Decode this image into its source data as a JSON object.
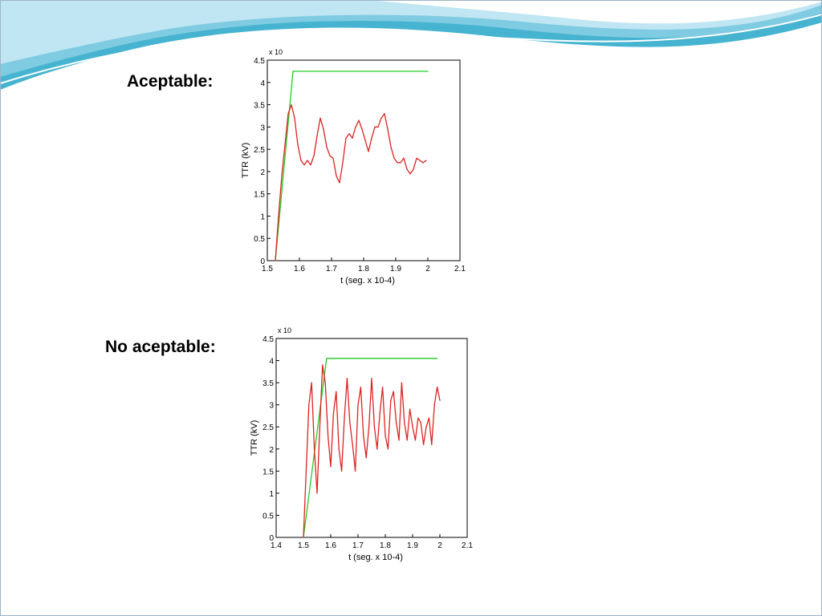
{
  "slide": {
    "labels": [
      "Aceptable:",
      "No aceptable:"
    ]
  },
  "colors": {
    "envelope": "#22cc22",
    "trv": "#dd2222",
    "wave_dark": "#46b4d0",
    "wave_light": "#a8dcec"
  },
  "chart_data": [
    {
      "type": "line",
      "title": "",
      "xlabel": "t (seg. x 10-4)",
      "ylabel": "TTR (kV)",
      "y_multiplier": "x 10",
      "xlim": [
        1.5,
        2.1
      ],
      "ylim": [
        0,
        4.5
      ],
      "xticks": [
        "1.5",
        "1.6",
        "1.7",
        "1.8",
        "1.9",
        "2",
        "2.1"
      ],
      "yticks": [
        "0",
        "0.5",
        "1",
        "1.5",
        "2",
        "2.5",
        "3",
        "3.5",
        "4",
        "4.5"
      ],
      "grid": false,
      "series": [
        {
          "color": "#22cc22",
          "x": [
            1.525,
            1.58,
            2.0
          ],
          "y": [
            0.0,
            4.25,
            4.25
          ]
        },
        {
          "color": "#dd2222",
          "x": [
            1.525,
            1.535,
            1.545,
            1.555,
            1.565,
            1.575,
            1.585,
            1.595,
            1.605,
            1.615,
            1.625,
            1.635,
            1.645,
            1.655,
            1.665,
            1.675,
            1.685,
            1.695,
            1.705,
            1.715,
            1.725,
            1.735,
            1.745,
            1.755,
            1.765,
            1.775,
            1.785,
            1.795,
            1.805,
            1.815,
            1.825,
            1.835,
            1.845,
            1.855,
            1.865,
            1.875,
            1.885,
            1.895,
            1.905,
            1.915,
            1.925,
            1.935,
            1.945,
            1.955,
            1.965,
            1.975,
            1.985,
            1.995
          ],
          "y": [
            0.0,
            1.0,
            1.9,
            2.6,
            3.3,
            3.5,
            3.2,
            2.6,
            2.25,
            2.15,
            2.25,
            2.15,
            2.35,
            2.8,
            3.2,
            2.95,
            2.55,
            2.35,
            2.3,
            1.9,
            1.75,
            2.2,
            2.75,
            2.85,
            2.75,
            3.0,
            3.15,
            2.95,
            2.7,
            2.45,
            2.75,
            3.0,
            3.0,
            3.2,
            3.3,
            2.95,
            2.55,
            2.3,
            2.2,
            2.2,
            2.3,
            2.05,
            1.95,
            2.05,
            2.3,
            2.25,
            2.2,
            2.25
          ]
        }
      ]
    },
    {
      "type": "line",
      "title": "",
      "xlabel": "t (seg. x 10-4)",
      "ylabel": "TTR (kV)",
      "y_multiplier": "x 10",
      "xlim": [
        1.4,
        2.1
      ],
      "ylim": [
        0,
        4.5
      ],
      "xticks": [
        "1.4",
        "1.5",
        "1.6",
        "1.7",
        "1.8",
        "1.9",
        "2",
        "2.1"
      ],
      "yticks": [
        "0",
        "0.5",
        "1",
        "1.5",
        "2",
        "2.5",
        "3",
        "3.5",
        "4",
        "4.5"
      ],
      "grid": false,
      "series": [
        {
          "color": "#22cc22",
          "x": [
            1.5,
            1.585,
            1.99
          ],
          "y": [
            0.0,
            4.05,
            4.05
          ]
        },
        {
          "color": "#dd2222",
          "x": [
            1.5,
            1.51,
            1.52,
            1.53,
            1.54,
            1.55,
            1.56,
            1.57,
            1.58,
            1.59,
            1.6,
            1.61,
            1.62,
            1.63,
            1.64,
            1.65,
            1.66,
            1.67,
            1.68,
            1.69,
            1.7,
            1.71,
            1.72,
            1.73,
            1.74,
            1.75,
            1.76,
            1.77,
            1.78,
            1.79,
            1.8,
            1.81,
            1.82,
            1.83,
            1.84,
            1.85,
            1.86,
            1.87,
            1.88,
            1.89,
            1.9,
            1.91,
            1.92,
            1.93,
            1.94,
            1.95,
            1.96,
            1.97,
            1.98,
            1.99,
            2.0
          ],
          "y": [
            0.0,
            1.5,
            3.0,
            3.5,
            2.0,
            1.0,
            2.5,
            3.9,
            3.5,
            2.3,
            1.6,
            2.8,
            3.3,
            2.0,
            1.5,
            2.7,
            3.6,
            2.6,
            2.1,
            1.5,
            3.0,
            3.4,
            2.3,
            1.8,
            2.5,
            3.6,
            2.5,
            2.0,
            2.8,
            3.4,
            2.3,
            2.0,
            3.1,
            3.3,
            2.6,
            2.2,
            3.5,
            2.6,
            2.2,
            2.9,
            2.5,
            2.2,
            2.7,
            2.6,
            2.1,
            2.5,
            2.7,
            2.1,
            3.0,
            3.4,
            3.1
          ]
        }
      ]
    }
  ]
}
